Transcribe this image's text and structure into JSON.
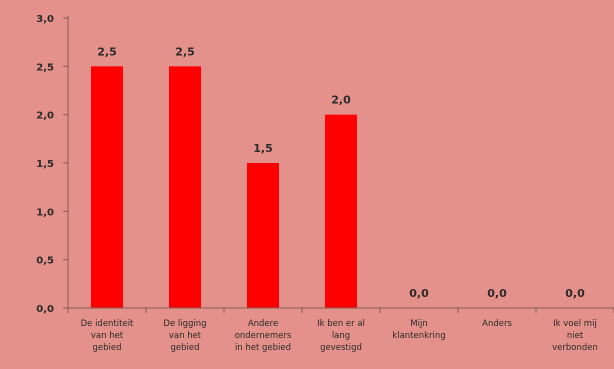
{
  "chart_data": {
    "type": "bar",
    "categories": [
      "De identiteit van het gebied",
      "De ligging van het gebied",
      "Andere ondernemers in het gebied",
      "Ik ben er al lang gevestigd",
      "Mijn klantenkring",
      "Anders",
      "Ik voel mij niet verbonden"
    ],
    "category_lines": [
      [
        "De identiteit",
        "van het",
        "gebied"
      ],
      [
        "De ligging",
        "van het",
        "gebied"
      ],
      [
        "Andere",
        "ondernemers",
        "in het gebied"
      ],
      [
        "Ik ben er al",
        "lang",
        "gevestigd"
      ],
      [
        "Mijn",
        "klantenkring"
      ],
      [
        "Anders"
      ],
      [
        "Ik voel mij",
        "niet",
        "verbonden"
      ]
    ],
    "values": [
      2.5,
      2.5,
      1.5,
      2.0,
      0.0,
      0.0,
      0.0
    ],
    "data_labels": [
      "2,5",
      "2,5",
      "1,5",
      "2,0",
      "0,0",
      "0,0",
      "0,0"
    ],
    "y_ticks": [
      0,
      0.5,
      1.0,
      1.5,
      2.0,
      2.5,
      3.0
    ],
    "y_tick_labels": [
      "0,0",
      "0,5",
      "1,0",
      "1,5",
      "2,0",
      "2,5",
      "3,0"
    ],
    "ylim": [
      0,
      3
    ],
    "title": "",
    "xlabel": "",
    "ylabel": "",
    "grid": false,
    "legend": "none",
    "colors": {
      "background": "#E3918A",
      "bar": "#FF0000",
      "axis": "#8A5A56",
      "text": "#2a2a2a"
    }
  }
}
